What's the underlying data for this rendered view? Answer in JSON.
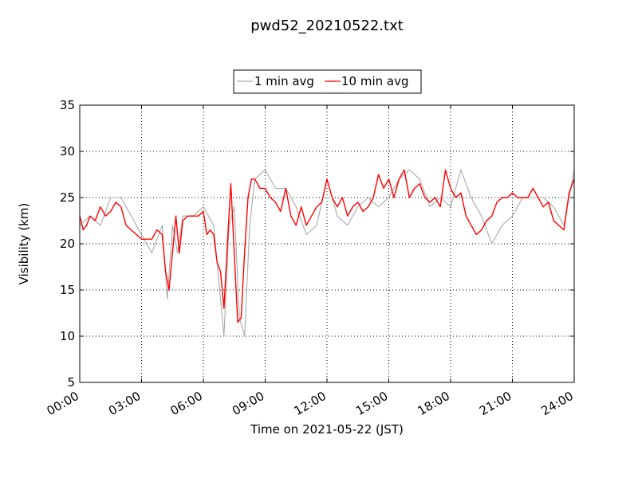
{
  "chart_data": {
    "type": "line",
    "title": "pwd52_20210522.txt",
    "xlabel": "Time on 2021-05-22 (JST)",
    "ylabel": "Visibility (km)",
    "xlim": [
      "00:00",
      "24:00"
    ],
    "ylim": [
      5,
      35
    ],
    "x_ticks": [
      "00:00",
      "03:00",
      "06:00",
      "09:00",
      "12:00",
      "15:00",
      "18:00",
      "21:00",
      "24:00"
    ],
    "y_ticks": [
      "5",
      "10",
      "15",
      "20",
      "25",
      "30",
      "35"
    ],
    "grid": true,
    "legend_position": "top-center",
    "series": [
      {
        "name": "1 min avg",
        "color": "#aaaaaa",
        "x": [
          "00:00",
          "00:30",
          "01:00",
          "01:30",
          "02:00",
          "02:30",
          "03:00",
          "03:30",
          "04:00",
          "04:15",
          "04:30",
          "04:45",
          "05:00",
          "05:30",
          "06:00",
          "06:30",
          "06:45",
          "07:00",
          "07:15",
          "07:30",
          "07:45",
          "08:00",
          "08:15",
          "08:30",
          "09:00",
          "09:30",
          "10:00",
          "10:30",
          "11:00",
          "11:30",
          "12:00",
          "12:30",
          "13:00",
          "13:30",
          "14:00",
          "14:30",
          "15:00",
          "15:30",
          "16:00",
          "16:30",
          "17:00",
          "17:30",
          "18:00",
          "18:30",
          "19:00",
          "19:30",
          "20:00",
          "20:30",
          "21:00",
          "21:30",
          "22:00",
          "22:30",
          "23:00",
          "23:30",
          "24:00"
        ],
        "y": [
          22,
          23,
          22,
          25,
          25,
          23,
          21,
          19,
          22,
          14,
          22,
          19,
          23,
          23,
          24,
          22,
          16,
          10,
          22,
          24,
          12,
          10,
          22,
          27,
          28,
          26,
          26,
          24,
          21,
          22,
          27,
          23,
          22,
          24,
          25,
          24,
          25,
          27,
          28,
          27,
          24,
          25,
          24,
          28,
          25,
          23,
          20,
          22,
          23,
          25,
          25,
          25,
          24,
          22,
          28
        ]
      },
      {
        "name": "10 min avg",
        "color": "#ff0000",
        "x": [
          "00:00",
          "00:10",
          "00:20",
          "00:30",
          "00:45",
          "01:00",
          "01:15",
          "01:30",
          "01:45",
          "02:00",
          "02:15",
          "02:30",
          "02:45",
          "03:00",
          "03:15",
          "03:30",
          "03:45",
          "04:00",
          "04:10",
          "04:20",
          "04:30",
          "04:40",
          "04:50",
          "05:00",
          "05:15",
          "05:30",
          "05:45",
          "06:00",
          "06:10",
          "06:20",
          "06:30",
          "06:40",
          "06:50",
          "07:00",
          "07:10",
          "07:20",
          "07:30",
          "07:40",
          "07:50",
          "08:00",
          "08:10",
          "08:20",
          "08:30",
          "08:45",
          "09:00",
          "09:15",
          "09:30",
          "09:45",
          "10:00",
          "10:15",
          "10:30",
          "10:45",
          "11:00",
          "11:15",
          "11:30",
          "11:45",
          "12:00",
          "12:15",
          "12:30",
          "12:45",
          "13:00",
          "13:15",
          "13:30",
          "13:45",
          "14:00",
          "14:15",
          "14:30",
          "14:45",
          "15:00",
          "15:15",
          "15:30",
          "15:45",
          "16:00",
          "16:15",
          "16:30",
          "16:45",
          "17:00",
          "17:15",
          "17:30",
          "17:45",
          "18:00",
          "18:15",
          "18:30",
          "18:45",
          "19:00",
          "19:15",
          "19:30",
          "19:45",
          "20:00",
          "20:15",
          "20:30",
          "20:45",
          "21:00",
          "21:15",
          "21:30",
          "21:45",
          "22:00",
          "22:15",
          "22:30",
          "22:45",
          "23:00",
          "23:15",
          "23:30",
          "23:45",
          "24:00"
        ],
        "y": [
          23,
          21.5,
          22,
          23,
          22.5,
          24,
          23,
          23.5,
          24.5,
          24,
          22,
          21.5,
          21,
          20.5,
          20.5,
          20.5,
          21.5,
          21,
          17,
          15,
          19,
          23,
          19,
          22.5,
          23,
          23,
          23,
          23.5,
          21,
          21.5,
          21,
          18,
          17,
          13,
          20,
          26.5,
          19,
          11.5,
          12,
          19,
          25,
          27,
          27,
          26,
          26,
          25,
          24.5,
          23.5,
          26,
          23,
          22,
          24,
          22,
          23,
          24,
          24.5,
          27,
          25,
          24,
          25,
          23,
          24,
          24.5,
          23.5,
          24,
          25,
          27.5,
          26,
          27,
          25,
          27,
          28,
          25,
          26,
          26.5,
          25,
          24.5,
          25,
          24,
          28,
          26,
          25,
          25.5,
          23,
          22,
          21,
          21.5,
          22.5,
          23,
          24.5,
          25,
          25,
          25.5,
          25,
          25,
          25,
          26,
          25,
          24,
          24.5,
          22.5,
          22,
          21.5,
          25.5,
          27
        ]
      }
    ]
  }
}
